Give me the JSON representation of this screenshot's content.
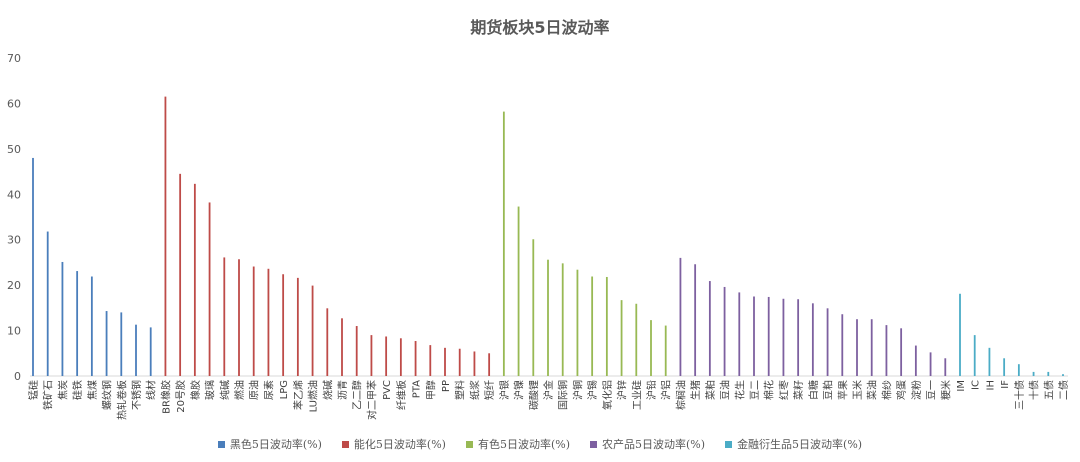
{
  "chart_data": {
    "type": "bar",
    "title": "期货板块5日波动率",
    "ylim": [
      0,
      70
    ],
    "yticks": [
      0,
      10,
      20,
      30,
      40,
      50,
      60,
      70
    ],
    "grid": false,
    "legend": "bottom",
    "series": [
      {
        "name": "黑色5日波动率(%)",
        "color": "#4a7ebb",
        "categories": [
          "锰硅",
          "铁矿石",
          "焦炭",
          "硅铁",
          "焦煤",
          "螺纹钢",
          "热轧卷板",
          "不锈钢",
          "线材"
        ],
        "values": [
          48,
          31.8,
          25.1,
          23.1,
          21.9,
          14.3,
          14.0,
          11.3,
          10.7
        ]
      },
      {
        "name": "能化5日波动率(%)",
        "color": "#be4b48",
        "categories": [
          "BR橡胶",
          "20号胶",
          "橡胶",
          "玻璃",
          "纯碱",
          "燃油",
          "原油",
          "尿素",
          "LPG",
          "苯乙烯",
          "LU燃油",
          "烧碱",
          "沥青",
          "乙二醇",
          "对二甲苯",
          "PVC",
          "纤维板",
          "PTA",
          "甲醇",
          "PP",
          "塑料",
          "纸浆",
          "短纤"
        ],
        "values": [
          61.5,
          44.5,
          42.3,
          38.2,
          26.1,
          25.7,
          24.1,
          23.6,
          22.4,
          21.6,
          19.9,
          14.9,
          12.7,
          11.0,
          9.0,
          8.7,
          8.3,
          7.7,
          6.8,
          6.2,
          6.0,
          5.4,
          5.0
        ]
      },
      {
        "name": "有色5日波动率(%)",
        "color": "#98b954",
        "categories": [
          "沪银",
          "沪镍",
          "碳酸锂",
          "沪金",
          "国际铜",
          "沪铜",
          "沪锡",
          "氧化铝",
          "沪锌",
          "工业硅",
          "沪铅",
          "沪铝"
        ],
        "values": [
          58.2,
          37.3,
          30.1,
          25.6,
          24.8,
          23.4,
          21.9,
          21.8,
          16.7,
          15.9,
          12.3,
          11.1
        ]
      },
      {
        "name": "农产品5日波动率(%)",
        "color": "#7d60a0",
        "categories": [
          "棕榈油",
          "生猪",
          "菜粕",
          "豆油",
          "花生",
          "豆二",
          "棉花",
          "红枣",
          "菜籽",
          "白糖",
          "豆粕",
          "苹果",
          "玉米",
          "菜油",
          "棉纱",
          "鸡蛋",
          "淀粉",
          "豆一",
          "粳米"
        ],
        "values": [
          26.0,
          24.6,
          20.9,
          19.6,
          18.4,
          17.5,
          17.4,
          17.0,
          16.9,
          16.0,
          14.9,
          13.6,
          12.5,
          12.5,
          11.2,
          10.5,
          6.7,
          5.2,
          3.9
        ]
      },
      {
        "name": "金融衍生品5日波动率(%)",
        "color": "#4bacc6",
        "categories": [
          "IM",
          "IC",
          "IH",
          "IF",
          "三十债",
          "十债",
          "五债",
          "二债"
        ],
        "values": [
          18.1,
          9.0,
          6.2,
          3.9,
          2.6,
          0.9,
          0.9,
          0.4
        ]
      }
    ]
  }
}
